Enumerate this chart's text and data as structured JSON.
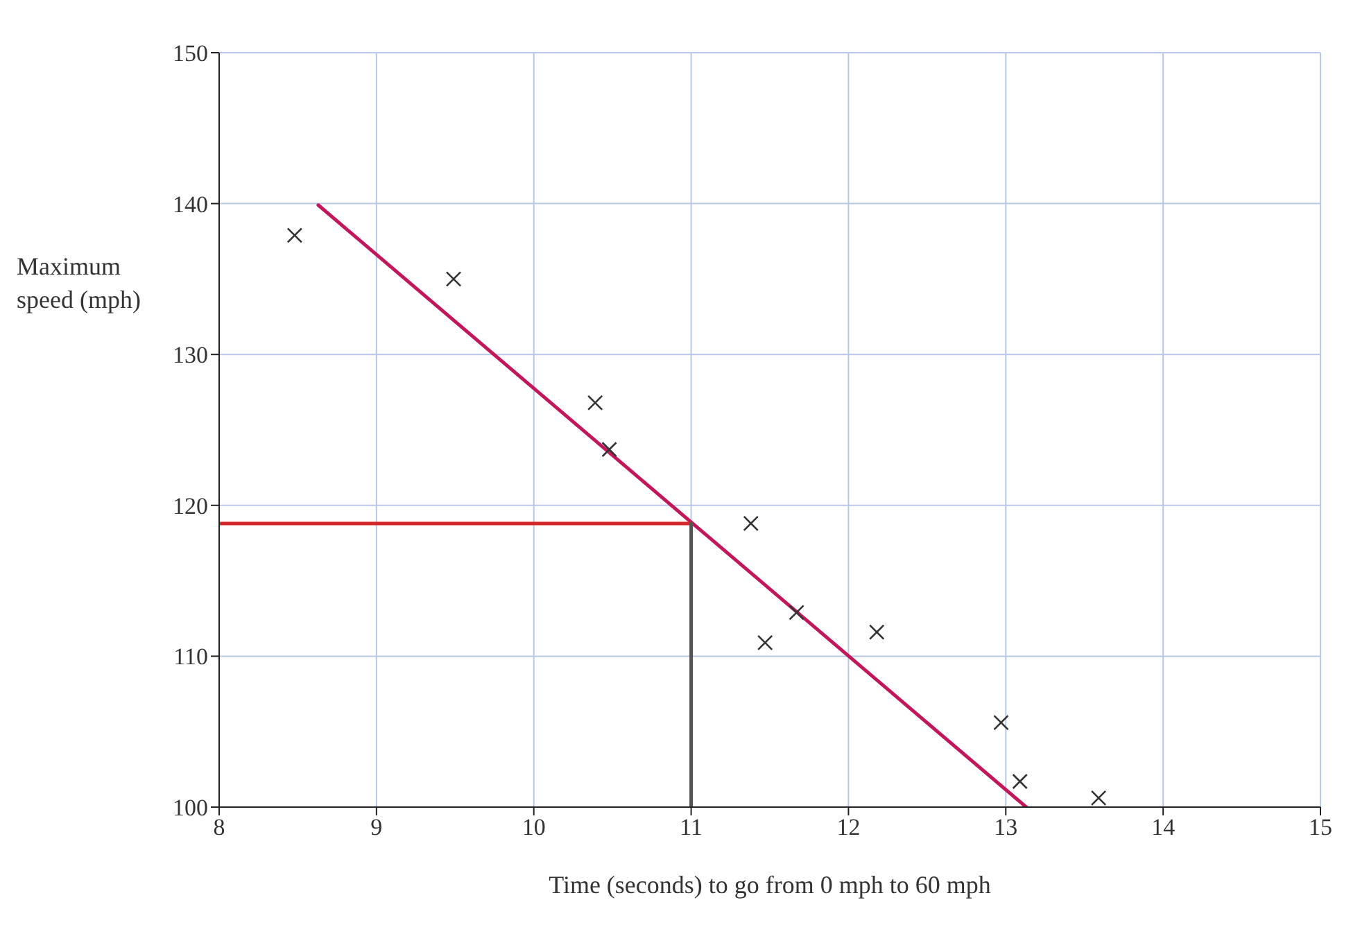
{
  "chart_data": {
    "type": "scatter",
    "xlabel": "Time (seconds) to go from 0 mph to 60 mph",
    "ylabel": "Maximum speed (mph)",
    "xlim": [
      8,
      15
    ],
    "xticks": [
      8,
      9,
      10,
      11,
      12,
      13,
      14,
      15
    ],
    "ylim": [
      100,
      150
    ],
    "yticks": [
      100,
      110,
      120,
      130,
      140,
      150
    ],
    "grid": true,
    "series": [
      {
        "marker": "cross",
        "color": "#333333",
        "x": [
          8.48,
          9.49,
          10.39,
          10.48,
          11.38,
          11.47,
          11.67,
          12.18,
          12.97,
          13.09,
          13.59
        ],
        "values": [
          137.9,
          135.0,
          126.8,
          123.7,
          118.8,
          110.9,
          112.9,
          111.6,
          105.6,
          101.7,
          100.6
        ]
      },
      {
        "type": "line",
        "marker": "none",
        "color": "#c2185b",
        "x": [
          8.63,
          13.13
        ],
        "values": [
          139.9,
          100
        ]
      },
      {
        "type": "line",
        "marker": "none",
        "color": "#d62728",
        "x": [
          8,
          11
        ],
        "values": [
          118.8,
          118.8
        ]
      },
      {
        "type": "line",
        "marker": "none",
        "color": "#555555",
        "x": [
          11,
          11
        ],
        "values": [
          118.8,
          100
        ]
      }
    ]
  }
}
